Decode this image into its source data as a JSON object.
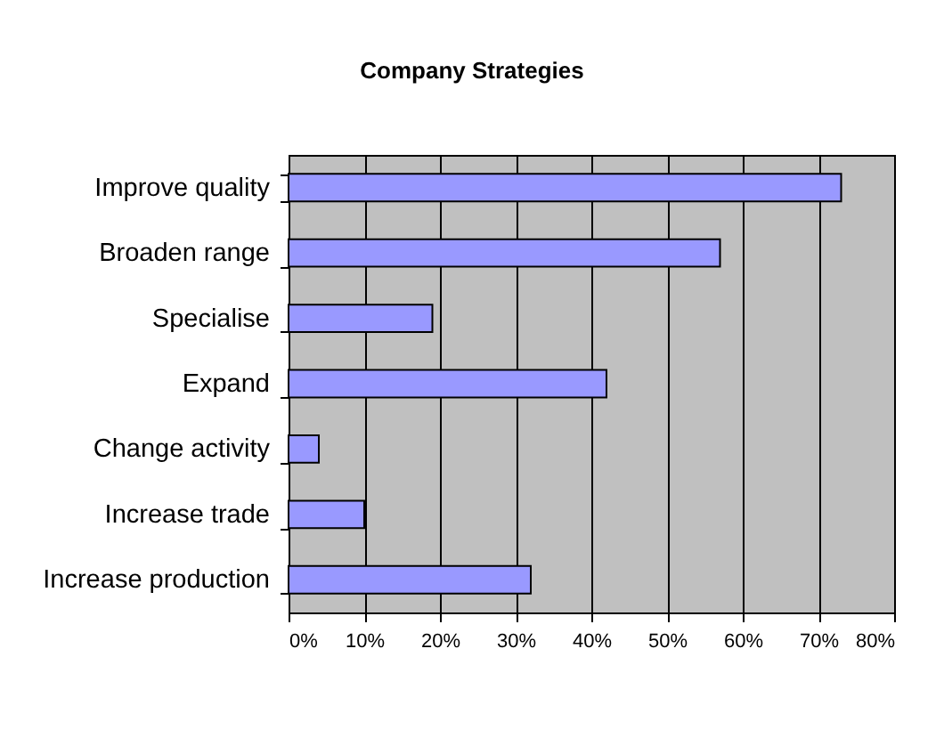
{
  "chart_data": {
    "type": "bar",
    "title": "Company Strategies",
    "orientation": "horizontal",
    "categories": [
      "Improve quality",
      "Broaden range",
      "Specialise",
      "Expand",
      "Change activity",
      "Increase trade",
      "Increase production"
    ],
    "values": [
      73,
      57,
      19,
      42,
      4,
      10,
      32
    ],
    "color": "#9999ff",
    "xlim": [
      0,
      80
    ],
    "xticks": [
      {
        "value": 0,
        "label": "0%"
      },
      {
        "value": 10,
        "label": "10%"
      },
      {
        "value": 20,
        "label": "20%"
      },
      {
        "value": 30,
        "label": "30%"
      },
      {
        "value": 40,
        "label": "40%"
      },
      {
        "value": 50,
        "label": "50%"
      },
      {
        "value": 60,
        "label": "60%"
      },
      {
        "value": 70,
        "label": "70%"
      },
      {
        "value": 80,
        "label": "80%"
      }
    ],
    "grid": "x"
  }
}
